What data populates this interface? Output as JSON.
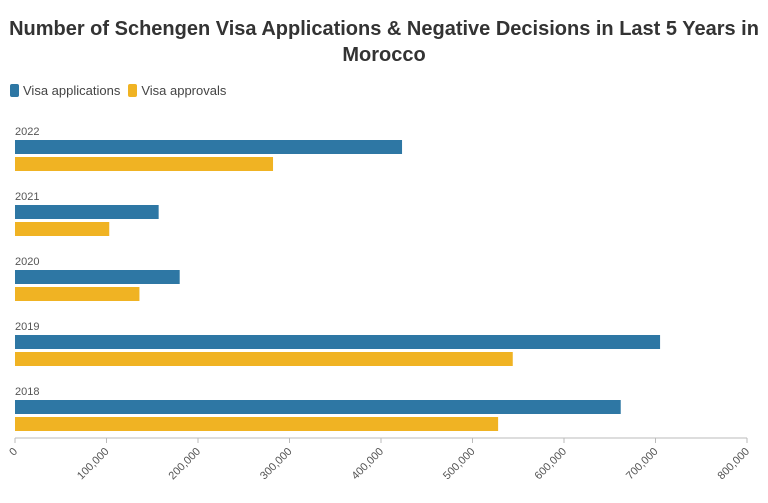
{
  "chart_data": {
    "type": "bar",
    "orientation": "horizontal",
    "title": "Number of Schengen Visa Applications & Negative Decisions in Last 5 Years in Morocco",
    "categories": [
      "2022",
      "2021",
      "2020",
      "2019",
      "2018"
    ],
    "series": [
      {
        "name": "Visa applications",
        "color": "#2e77a4",
        "values": [
          423000,
          157000,
          180000,
          705000,
          662000
        ]
      },
      {
        "name": "Visa approvals",
        "color": "#f0b323",
        "values": [
          282000,
          103000,
          136000,
          544000,
          528000
        ]
      }
    ],
    "xlim": [
      0,
      800000
    ],
    "xticks": [
      0,
      100000,
      200000,
      300000,
      400000,
      500000,
      600000,
      700000,
      800000
    ],
    "xtick_labels": [
      "0",
      "100,000",
      "200,000",
      "300,000",
      "400,000",
      "500,000",
      "600,000",
      "700,000",
      "800,000"
    ],
    "xlabel": "",
    "ylabel": "",
    "grid": false,
    "legend_position": "top-left"
  }
}
